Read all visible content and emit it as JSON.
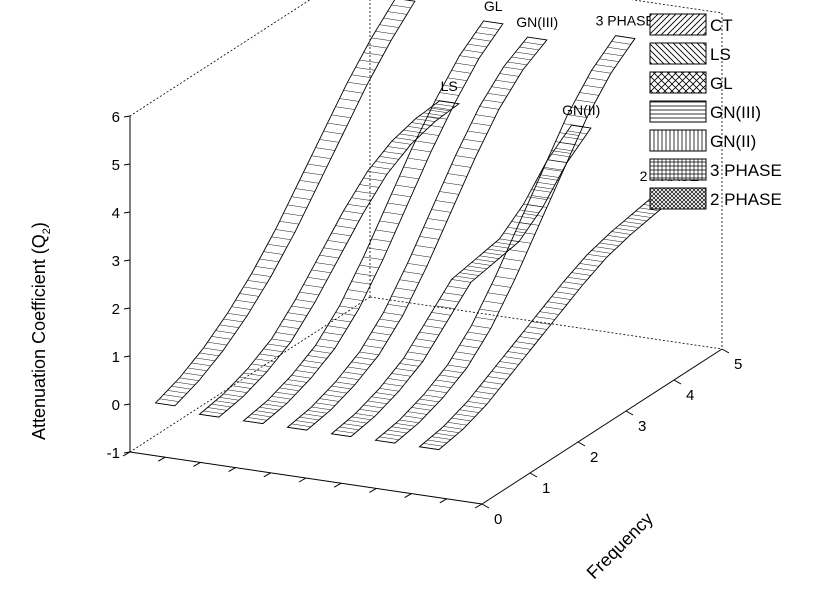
{
  "chart_data": {
    "type": "3d-ribbon",
    "ylabel": "Attenuation Coefficient (Q",
    "ylabel_subscript": "2",
    "ylabel_suffix": ")",
    "zlabel": "Frequency",
    "ylim": [
      -1,
      6
    ],
    "zlim": [
      0,
      5
    ],
    "y_ticks": [
      "-1",
      "0",
      "1",
      "2",
      "3",
      "4",
      "5",
      "6"
    ],
    "z_ticks": [
      "0",
      "1",
      "2",
      "3",
      "4",
      "5"
    ],
    "frequency": [
      0,
      0.5,
      1,
      1.5,
      2,
      2.5,
      3,
      3.5,
      4,
      4.5,
      5
    ],
    "legend_position": "top-right",
    "series": [
      {
        "name": "CT",
        "pattern": "diag-forward",
        "values": [
          0.1,
          0.3,
          0.6,
          1.0,
          1.5,
          2.1,
          2.8,
          3.5,
          4.2,
          4.8,
          5.3
        ]
      },
      {
        "name": "LS",
        "pattern": "diag-back",
        "values": [
          0.0,
          0.1,
          0.3,
          0.6,
          1.1,
          1.7,
          2.3,
          2.8,
          3.1,
          3.25,
          3.3
        ]
      },
      {
        "name": "GL",
        "pattern": "crosshatch",
        "values": [
          0.0,
          0.1,
          0.3,
          0.6,
          1.1,
          1.8,
          2.6,
          3.4,
          4.1,
          4.7,
          5.1
        ]
      },
      {
        "name": "GN(III)",
        "pattern": "horizontal",
        "values": [
          0.0,
          0.1,
          0.3,
          0.6,
          1.1,
          1.8,
          2.6,
          3.4,
          4.1,
          4.6,
          4.9
        ]
      },
      {
        "name": "GN(II)",
        "pattern": "vertical",
        "values": [
          0.0,
          0.1,
          0.3,
          0.6,
          1.1,
          1.6,
          1.7,
          1.8,
          2.2,
          2.8,
          3.2
        ]
      },
      {
        "name": "3 PHASE",
        "pattern": "grid",
        "values": [
          0.0,
          0.1,
          0.3,
          0.6,
          1.1,
          1.8,
          2.6,
          3.4,
          4.2,
          4.8,
          5.2
        ]
      },
      {
        "name": "2 PHASE",
        "pattern": "diag-cross",
        "values": [
          0.0,
          0.1,
          0.3,
          0.6,
          0.9,
          1.2,
          1.5,
          1.75,
          1.9,
          2.0,
          2.1
        ]
      }
    ]
  }
}
